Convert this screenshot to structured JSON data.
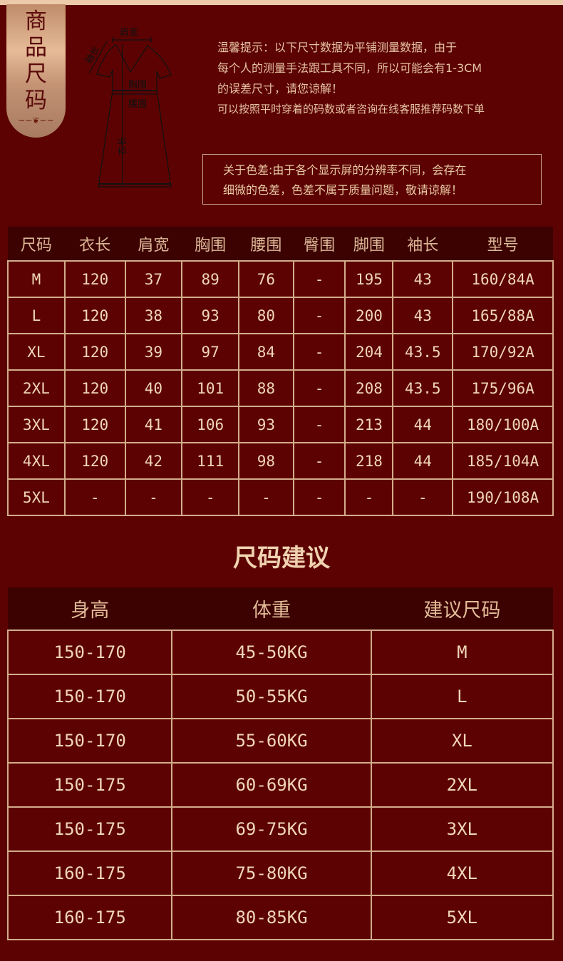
{
  "banner": {
    "chars": [
      "商",
      "品",
      "尺",
      "码"
    ]
  },
  "diagram": {
    "labels": {
      "shoulder": "肩宽",
      "sleeve": "袖长",
      "chest": "胸围",
      "waist": "腰围",
      "length": "衣长"
    }
  },
  "tips": [
    "温馨提示：以下尺寸数据为平铺测量数据，由于",
    "每个人的测量手法跟工具不同，所以可能会有1-3CM",
    "的误差尺寸，请您谅解！",
    "可以按照平时穿着的码数或者咨询在线客服推荐码数下单"
  ],
  "color_note": [
    "关于色差:由于各个显示屏的分辨率不同，会存在",
    "细微的色差，色差不属于质量问题，敬请谅解！"
  ],
  "size_table": {
    "headers": [
      "尺码",
      "衣长",
      "肩宽",
      "胸围",
      "腰围",
      "臀围",
      "脚围",
      "袖长",
      "型号"
    ],
    "rows": [
      [
        "M",
        "120",
        "37",
        "89",
        "76",
        "-",
        "195",
        "43",
        "160/84A"
      ],
      [
        "L",
        "120",
        "38",
        "93",
        "80",
        "-",
        "200",
        "43",
        "165/88A"
      ],
      [
        "XL",
        "120",
        "39",
        "97",
        "84",
        "-",
        "204",
        "43.5",
        "170/92A"
      ],
      [
        "2XL",
        "120",
        "40",
        "101",
        "88",
        "-",
        "208",
        "43.5",
        "175/96A"
      ],
      [
        "3XL",
        "120",
        "41",
        "106",
        "93",
        "-",
        "213",
        "44",
        "180/100A"
      ],
      [
        "4XL",
        "120",
        "42",
        "111",
        "98",
        "-",
        "218",
        "44",
        "185/104A"
      ],
      [
        "5XL",
        "-",
        "-",
        "-",
        "-",
        "-",
        "-",
        "-",
        "190/108A"
      ]
    ]
  },
  "suggest": {
    "title": "尺码建议",
    "headers": [
      "身高",
      "体重",
      "建议尺码"
    ],
    "rows": [
      [
        "150-170",
        "45-50KG",
        "M"
      ],
      [
        "150-170",
        "50-55KG",
        "L"
      ],
      [
        "150-170",
        "55-60KG",
        "XL"
      ],
      [
        "150-175",
        "60-69KG",
        "2XL"
      ],
      [
        "150-175",
        "69-75KG",
        "3XL"
      ],
      [
        "160-175",
        "75-80KG",
        "4XL"
      ],
      [
        "160-175",
        "80-85KG",
        "5XL"
      ]
    ]
  },
  "colors": {
    "background": "#5c0202",
    "header": "#3c0202",
    "text": "#e9caa4",
    "border": "#d3ac8a"
  }
}
